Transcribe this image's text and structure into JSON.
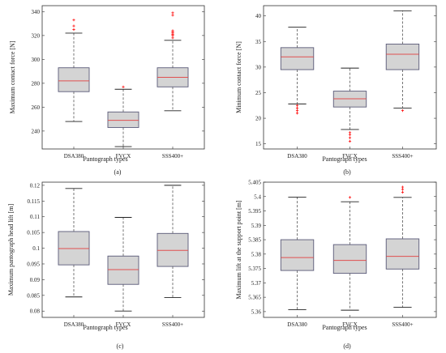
{
  "chart_data": [
    {
      "type": "box",
      "panel": "(a)",
      "xlabel": "Pantograph types",
      "ylabel": "Maximum contact force  [N]",
      "ylim": [
        225,
        345
      ],
      "yticks": [
        240,
        260,
        280,
        300,
        320,
        340
      ],
      "yticklabels": [
        "240",
        "260",
        "280",
        "300",
        "320",
        "340"
      ],
      "categories": [
        "DSA380",
        "FVCX",
        "SSS400+"
      ],
      "boxes": [
        {
          "q1": 273,
          "median": 282,
          "q3": 293,
          "whisker_low": 248,
          "whisker_high": 322,
          "outliers": [
            325,
            328,
            333
          ]
        },
        {
          "q1": 243,
          "median": 249,
          "q3": 256,
          "whisker_low": 227,
          "whisker_high": 275,
          "outliers": [
            277
          ]
        },
        {
          "q1": 277,
          "median": 285,
          "q3": 293,
          "whisker_low": 257,
          "whisker_high": 316,
          "outliers": [
            318,
            320,
            321,
            322,
            323,
            324,
            337,
            339
          ]
        }
      ]
    },
    {
      "type": "box",
      "panel": "(b)",
      "xlabel": "Pantograph types",
      "ylabel": "Minimum contact force  [N]",
      "ylim": [
        14,
        42
      ],
      "yticks": [
        15,
        20,
        25,
        30,
        35,
        40
      ],
      "yticklabels": [
        "15",
        "20",
        "25",
        "30",
        "35",
        "40"
      ],
      "categories": [
        "DSA380",
        "FVCX",
        "SSS400+"
      ],
      "boxes": [
        {
          "q1": 29.5,
          "median": 32,
          "q3": 33.8,
          "whisker_low": 22.8,
          "whisker_high": 37.8,
          "outliers": [
            21,
            21.5,
            22,
            22.5
          ]
        },
        {
          "q1": 22.2,
          "median": 23.8,
          "q3": 25.3,
          "whisker_low": 17.8,
          "whisker_high": 29.8,
          "outliers": [
            15.5,
            16.2,
            16.8,
            17.2
          ]
        },
        {
          "q1": 29.5,
          "median": 32.5,
          "q3": 34.5,
          "whisker_low": 22,
          "whisker_high": 41,
          "outliers": [
            21.5
          ]
        }
      ]
    },
    {
      "type": "box",
      "panel": "(c)",
      "xlabel": "Pantograph types",
      "ylabel": "Maximum pantograph head lift  [m]",
      "ylim": [
        0.078,
        0.121
      ],
      "yticks": [
        0.08,
        0.085,
        0.09,
        0.095,
        0.1,
        0.105,
        0.11,
        0.115,
        0.12
      ],
      "yticklabels": [
        "0.08",
        "0.085",
        "0.09",
        "0.095",
        "0.1",
        "0.105",
        "0.11",
        "0.115",
        "0.12"
      ],
      "categories": [
        "DSA380",
        "FVCX",
        "SSS400+"
      ],
      "boxes": [
        {
          "q1": 0.0947,
          "median": 0.0999,
          "q3": 0.1053,
          "whisker_low": 0.0845,
          "whisker_high": 0.119,
          "outliers": []
        },
        {
          "q1": 0.0885,
          "median": 0.0932,
          "q3": 0.0975,
          "whisker_low": 0.08,
          "whisker_high": 0.1098,
          "outliers": []
        },
        {
          "q1": 0.0942,
          "median": 0.0993,
          "q3": 0.1047,
          "whisker_low": 0.0843,
          "whisker_high": 0.12,
          "outliers": []
        }
      ]
    },
    {
      "type": "box",
      "panel": "(d)",
      "xlabel": "Pantograph types",
      "ylabel": "Maximum lift at the support point [m]",
      "ylim": [
        5.358,
        5.405
      ],
      "yticks": [
        5.36,
        5.365,
        5.37,
        5.375,
        5.38,
        5.385,
        5.39,
        5.395,
        5.4,
        5.405
      ],
      "yticklabels": [
        "5.36",
        "5.365",
        "5.37",
        "5.375",
        "5.38",
        "5.385",
        "5.39",
        "5.395",
        "5.4",
        "5.405"
      ],
      "categories": [
        "DSA380",
        "FVCX",
        "SSS400+"
      ],
      "boxes": [
        {
          "q1": 5.3743,
          "median": 5.3788,
          "q3": 5.385,
          "whisker_low": 5.3607,
          "whisker_high": 5.3998,
          "outliers": []
        },
        {
          "q1": 5.3733,
          "median": 5.3778,
          "q3": 5.3833,
          "whisker_low": 5.3605,
          "whisker_high": 5.3982,
          "outliers": [
            5.3997
          ]
        },
        {
          "q1": 5.3748,
          "median": 5.3792,
          "q3": 5.3853,
          "whisker_low": 5.3615,
          "whisker_high": 5.3997,
          "outliers": [
            5.4015,
            5.4025,
            5.4033
          ]
        }
      ]
    }
  ],
  "colors": {
    "box_fill": "#d4d4d4",
    "box_edge": "#5a5a78",
    "median": "#e05050",
    "whisker": "#555555",
    "outlier": "#ff2020",
    "axis": "#333333"
  }
}
